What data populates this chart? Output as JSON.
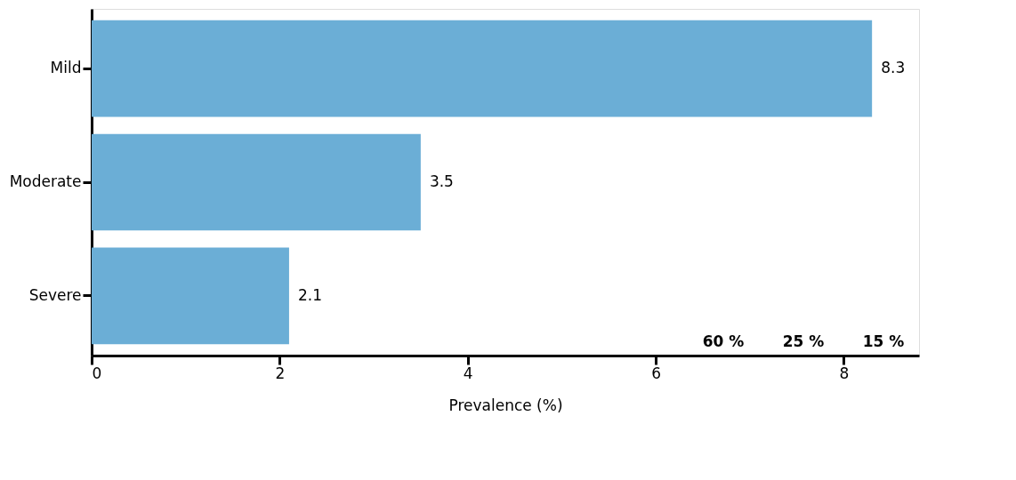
{
  "chart_data": {
    "type": "bar",
    "orientation": "horizontal",
    "categories": [
      "Mild",
      "Moderate",
      "Severe"
    ],
    "values": [
      8.3,
      3.5,
      2.1
    ],
    "color": "#6baed6",
    "xlabel": "Prevalence (%)",
    "xlim": [
      0,
      8.8
    ],
    "xticks": [
      0,
      2,
      4,
      6,
      8
    ],
    "grid": false,
    "data_labels": true,
    "annotations": [
      "60 %",
      "25 %",
      "15 %"
    ]
  }
}
